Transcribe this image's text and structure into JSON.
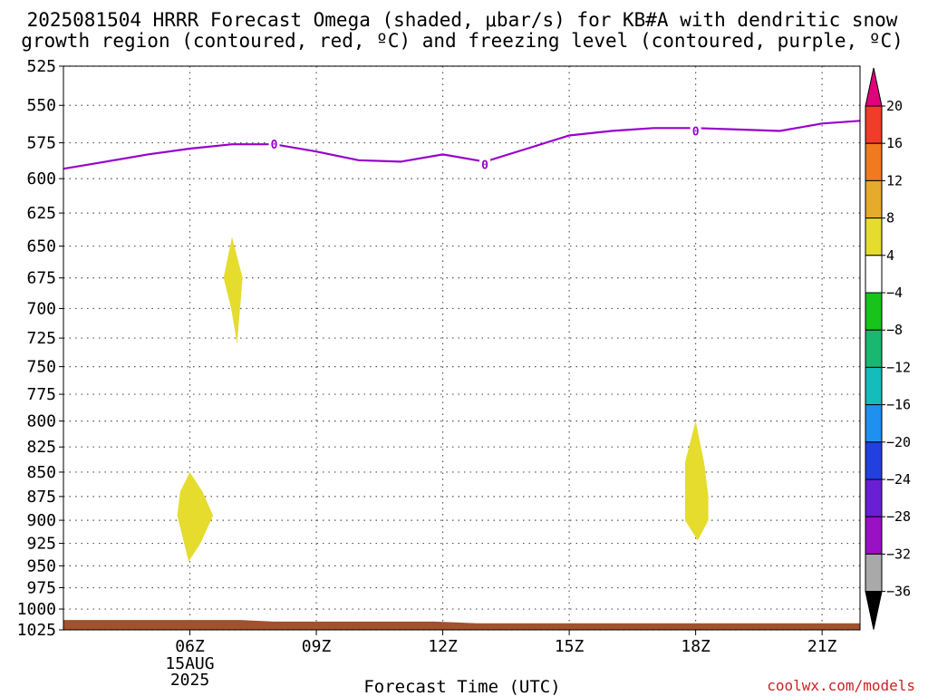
{
  "title": {
    "line1": "2025081504 HRRR Forecast Omega (shaded, μbar/s) for KB#A with dendritic snow",
    "line2": "growth region (contoured, red, ºC) and freezing level (contoured, purple, ºC)"
  },
  "credit": "coolwx.com/models",
  "colors": {
    "freezing_level": "#9900cc",
    "shade_positive": "#e5dc2e",
    "ground": "#a0522d",
    "credit": "#cc2222",
    "grid": "#555555"
  },
  "chart_data": {
    "type": "contour",
    "xlabel": "Forecast Time (UTC)",
    "ylabel": "",
    "x_unit": "hours since 2025-08-15 00Z",
    "xlim": [
      3,
      21.9
    ],
    "ylim": [
      1025,
      525
    ],
    "y_ticks": [
      "525",
      "550",
      "575",
      "600",
      "625",
      "650",
      "675",
      "700",
      "725",
      "750",
      "775",
      "800",
      "825",
      "850",
      "875",
      "900",
      "925",
      "950",
      "975",
      "1000",
      "1025"
    ],
    "x_ticks": [
      {
        "x": 6,
        "label": "06Z",
        "date": "15AUG",
        "year": "2025"
      },
      {
        "x": 9,
        "label": "09Z"
      },
      {
        "x": 12,
        "label": "12Z"
      },
      {
        "x": 15,
        "label": "15Z"
      },
      {
        "x": 18,
        "label": "18Z"
      },
      {
        "x": 21,
        "label": "21Z"
      }
    ],
    "grid": true,
    "freezing_level": {
      "label": "0",
      "label_points": [
        {
          "x": 8,
          "p": 576
        },
        {
          "x": 13,
          "p": 590
        },
        {
          "x": 18,
          "p": 567
        }
      ],
      "points": [
        {
          "x": 3,
          "p": 593
        },
        {
          "x": 4,
          "p": 588
        },
        {
          "x": 5,
          "p": 583
        },
        {
          "x": 6,
          "p": 579
        },
        {
          "x": 7,
          "p": 576
        },
        {
          "x": 8,
          "p": 576
        },
        {
          "x": 9,
          "p": 581
        },
        {
          "x": 10,
          "p": 587
        },
        {
          "x": 11,
          "p": 588
        },
        {
          "x": 12,
          "p": 583
        },
        {
          "x": 13,
          "p": 588
        },
        {
          "x": 14,
          "p": 579
        },
        {
          "x": 15,
          "p": 570
        },
        {
          "x": 16,
          "p": 567
        },
        {
          "x": 17,
          "p": 565
        },
        {
          "x": 18,
          "p": 565
        },
        {
          "x": 19,
          "p": 566
        },
        {
          "x": 20,
          "p": 567
        },
        {
          "x": 21,
          "p": 562
        },
        {
          "x": 22,
          "p": 560
        }
      ]
    },
    "omega_regions": [
      {
        "level": "4-8",
        "points": [
          {
            "x": 7.0,
            "p": 643
          },
          {
            "x": 7.25,
            "p": 675
          },
          {
            "x": 7.12,
            "p": 730
          },
          {
            "x": 6.98,
            "p": 700
          },
          {
            "x": 6.8,
            "p": 675
          }
        ]
      },
      {
        "level": "4-8",
        "points": [
          {
            "x": 6.0,
            "p": 850
          },
          {
            "x": 6.3,
            "p": 870
          },
          {
            "x": 6.55,
            "p": 895
          },
          {
            "x": 6.25,
            "p": 925
          },
          {
            "x": 5.97,
            "p": 945
          },
          {
            "x": 5.7,
            "p": 895
          },
          {
            "x": 5.77,
            "p": 870
          }
        ]
      },
      {
        "level": "4-8",
        "points": [
          {
            "x": 18.0,
            "p": 800
          },
          {
            "x": 18.2,
            "p": 840
          },
          {
            "x": 18.3,
            "p": 875
          },
          {
            "x": 18.3,
            "p": 900
          },
          {
            "x": 18.05,
            "p": 922
          },
          {
            "x": 17.75,
            "p": 900
          },
          {
            "x": 17.75,
            "p": 840
          }
        ]
      }
    ],
    "ground_surface": [
      {
        "x": 3,
        "p": 1013
      },
      {
        "x": 7.2,
        "p": 1013
      },
      {
        "x": 8,
        "p": 1015
      },
      {
        "x": 11.8,
        "p": 1015
      },
      {
        "x": 12.8,
        "p": 1017
      },
      {
        "x": 22,
        "p": 1017
      }
    ],
    "colorbar": {
      "unit": "μbar/s",
      "bins": [
        {
          "lo": 20,
          "hi": null,
          "color": "#e0007a"
        },
        {
          "lo": 16,
          "hi": 20,
          "color": "#f03c28"
        },
        {
          "lo": 12,
          "hi": 16,
          "color": "#f07a1e"
        },
        {
          "lo": 8,
          "hi": 12,
          "color": "#e5aa2a"
        },
        {
          "lo": 4,
          "hi": 8,
          "color": "#e5dc2e"
        },
        {
          "lo": -4,
          "hi": 4,
          "color": "#ffffff"
        },
        {
          "lo": -8,
          "hi": -4,
          "color": "#16c41c"
        },
        {
          "lo": -12,
          "hi": -8,
          "color": "#18b870"
        },
        {
          "lo": -16,
          "hi": -12,
          "color": "#14bcbc"
        },
        {
          "lo": -20,
          "hi": -16,
          "color": "#1e90f0"
        },
        {
          "lo": -24,
          "hi": -20,
          "color": "#2240e0"
        },
        {
          "lo": -28,
          "hi": -24,
          "color": "#6a1fd4"
        },
        {
          "lo": -32,
          "hi": -28,
          "color": "#9a10c4"
        },
        {
          "lo": -36,
          "hi": -32,
          "color": "#a9a9a9"
        },
        {
          "lo": null,
          "hi": -36,
          "color": "#000000"
        }
      ],
      "labels": [
        "20",
        "16",
        "12",
        "8",
        "4",
        "-4",
        "-8",
        "-12",
        "-16",
        "-20",
        "-24",
        "-28",
        "-32",
        "-36"
      ]
    }
  }
}
